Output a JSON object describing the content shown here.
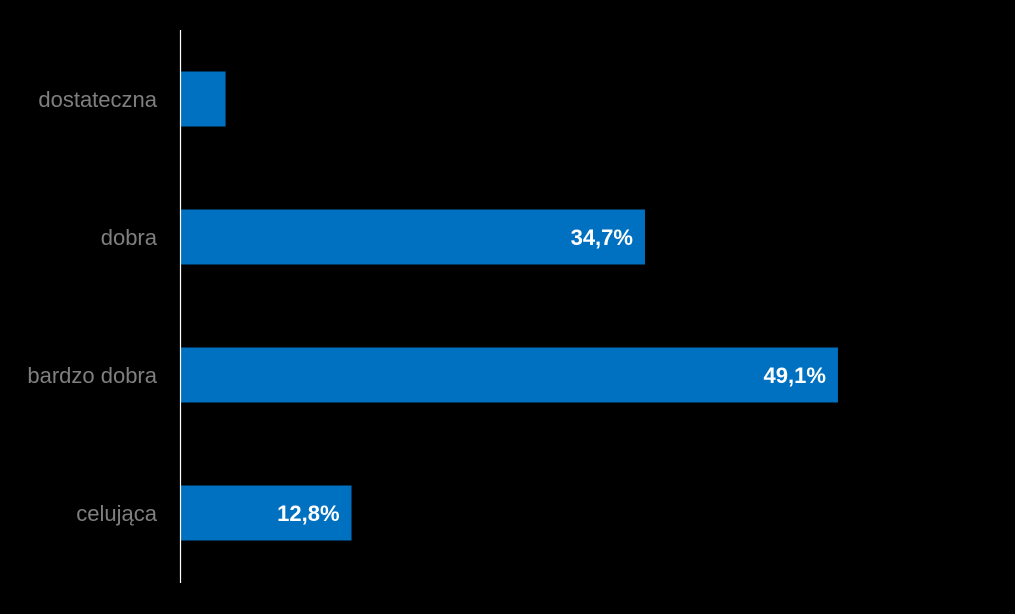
{
  "chart_data": {
    "type": "bar",
    "orientation": "horizontal",
    "categories": [
      "dostateczna",
      "dobra",
      "bardzo dobra",
      "celująca"
    ],
    "values": [
      3.4,
      34.7,
      49.1,
      12.8
    ],
    "data_labels": [
      "",
      "34,7%",
      "49,1%",
      "12,8%"
    ],
    "title": "",
    "xlabel": "",
    "ylabel": "",
    "xlim": [
      0,
      100
    ],
    "grid": false,
    "legend": "none"
  },
  "colors": {
    "background": "#000000",
    "bar": "#0070C0",
    "axis": "#FFFFFF",
    "category_text": "#7F7F7F",
    "value_text": "#FFFFFF"
  }
}
